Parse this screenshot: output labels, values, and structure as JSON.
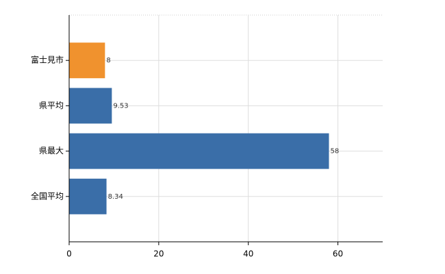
{
  "chart_data": {
    "type": "bar",
    "orientation": "horizontal",
    "categories": [
      "富士見市",
      "県平均",
      "県最大",
      "全国平均"
    ],
    "values": [
      8,
      9.53,
      58,
      8.34
    ],
    "colors": [
      "#f0922e",
      "#3a6ea8",
      "#3a6ea8",
      "#3a6ea8"
    ],
    "xlim": [
      0,
      70
    ],
    "xticks": [
      0,
      20,
      40,
      60
    ],
    "grid": true
  }
}
